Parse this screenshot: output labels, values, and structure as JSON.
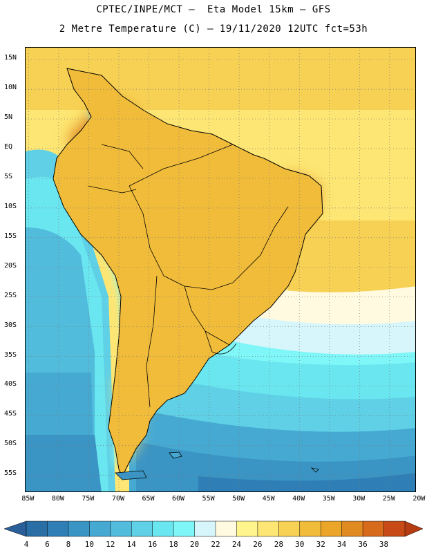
{
  "header": {
    "line1": "CPTEC/INPE/MCT –  Eta Model 15km – GFS",
    "line2": "2 Metre Temperature (C) – 19/11/2020 12UTC fct=53h"
  },
  "axes": {
    "lat_labels": [
      "15N",
      "10N",
      "5N",
      "EQ",
      "5S",
      "10S",
      "15S",
      "20S",
      "25S",
      "30S",
      "35S",
      "40S",
      "45S",
      "50S",
      "55S"
    ],
    "lat_values": [
      15,
      10,
      5,
      0,
      -5,
      -10,
      -15,
      -20,
      -25,
      -30,
      -35,
      -40,
      -45,
      -50,
      -55
    ],
    "lon_labels": [
      "85W",
      "80W",
      "75W",
      "70W",
      "65W",
      "60W",
      "55W",
      "50W",
      "45W",
      "40W",
      "35W",
      "30W",
      "25W",
      "20W"
    ],
    "lon_values": [
      -85,
      -80,
      -75,
      -70,
      -65,
      -60,
      -55,
      -50,
      -45,
      -40,
      -35,
      -30,
      -25,
      -20
    ],
    "lat_range": [
      -58,
      17
    ],
    "lon_range": [
      -85.5,
      -20.5
    ]
  },
  "legend": {
    "labels": [
      "4",
      "6",
      "8",
      "10",
      "12",
      "14",
      "16",
      "18",
      "20",
      "22",
      "24",
      "26",
      "28",
      "30",
      "32",
      "34",
      "36",
      "38"
    ],
    "colors": [
      "#2a6ea6",
      "#2f7fb6",
      "#3a94c4",
      "#46a9d2",
      "#52bcdd",
      "#5fd0e6",
      "#6ae6f0",
      "#7ff6f8",
      "#d6f6fb",
      "#fffae0",
      "#fff58c",
      "#fde673",
      "#f7d154",
      "#f1bc3a",
      "#eba528",
      "#e08a22",
      "#d86a1c",
      "#c84a16"
    ],
    "low_color": "#2a5f9a",
    "high_color": "#b63c12"
  }
}
